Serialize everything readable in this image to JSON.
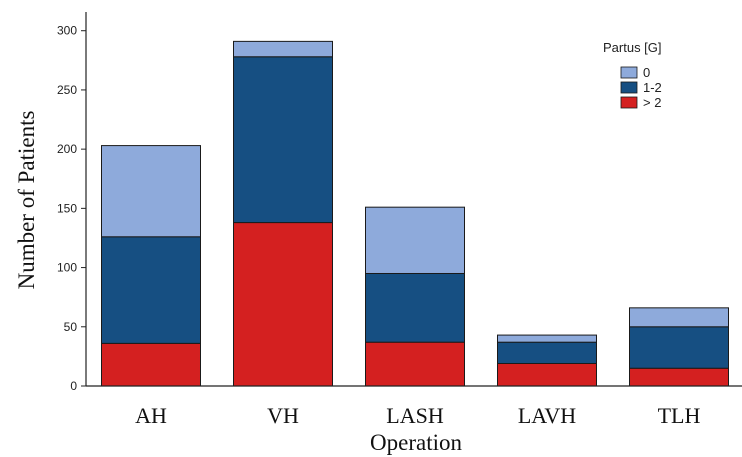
{
  "chart_data": {
    "type": "bar",
    "stacked": true,
    "categories": [
      "AH",
      "VH",
      "LASH",
      "LAVH",
      "TLH"
    ],
    "series": [
      {
        "name": "> 2",
        "color": "#d42020",
        "values": [
          36,
          138,
          37,
          19,
          15
        ]
      },
      {
        "name": "1-2",
        "color": "#164f82",
        "values": [
          90,
          140,
          58,
          18,
          35
        ]
      },
      {
        "name": "0",
        "color": "#8eaadb",
        "values": [
          77,
          13,
          56,
          6,
          16
        ]
      }
    ],
    "legend_title": "Partus [G]",
    "legend_order": [
      "0",
      "1-2",
      "> 2"
    ],
    "legend_position": "top-right",
    "xlabel": "Operation",
    "ylabel": "Number of Patients",
    "ylim": [
      0,
      300
    ],
    "yticks": [
      0,
      50,
      100,
      150,
      200,
      250,
      300
    ],
    "grid": false
  }
}
